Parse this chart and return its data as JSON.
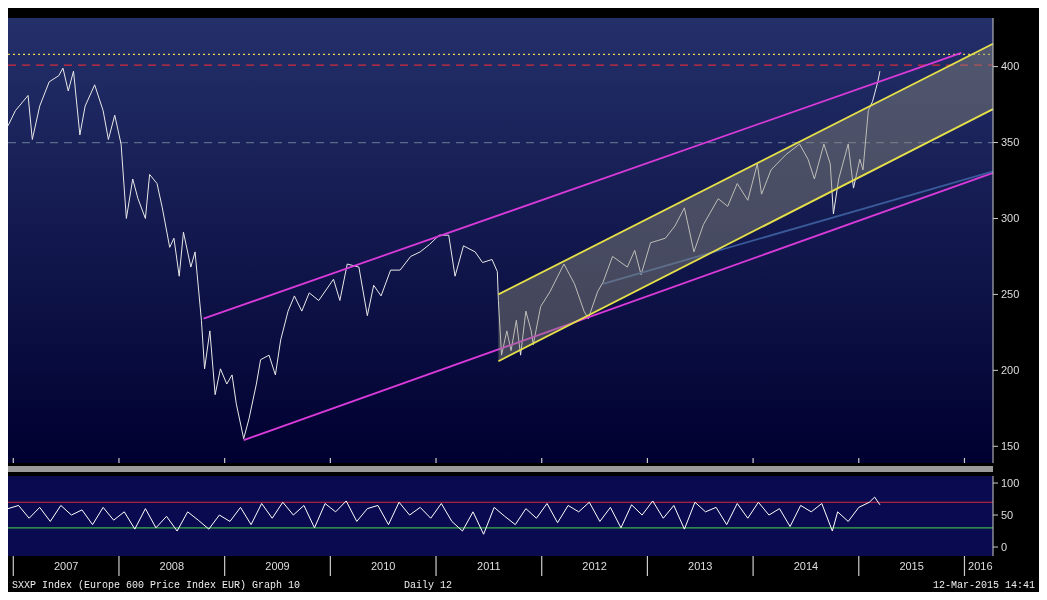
{
  "chart_data": [
    {
      "type": "line",
      "tick_labels": "y",
      "xlim": [
        2006.95,
        2016.27
      ],
      "xticks": [
        {
          "value": 2007,
          "label": null
        },
        {
          "value": 2008,
          "label": null
        },
        {
          "value": 2009,
          "label": null
        },
        {
          "value": 2010,
          "label": null
        },
        {
          "value": 2011,
          "label": null
        },
        {
          "value": 2012,
          "label": null
        },
        {
          "value": 2013,
          "label": null
        },
        {
          "value": 2014,
          "label": null
        },
        {
          "value": 2015,
          "label": null
        },
        {
          "value": 2016,
          "label": null
        }
      ],
      "ylim": [
        139,
        432
      ],
      "yticks": [
        150,
        200,
        250,
        300,
        350,
        400
      ],
      "ref_lines": [
        {
          "axis": "y",
          "value": 408,
          "color": "#e8d84a",
          "line_style": "dotted"
        },
        {
          "axis": "y",
          "value": 401,
          "color": "#d42a3a",
          "line_style": "dashed"
        },
        {
          "axis": "y",
          "value": 350,
          "color": "#5a6a8a",
          "line_style": "dashed"
        }
      ],
      "series": [
        {
          "color": "#e8e8e8",
          "x": [
            2006.95,
            2007.02,
            2007.14,
            2007.18,
            2007.25,
            2007.34,
            2007.43,
            2007.47,
            2007.52,
            2007.57,
            2007.63,
            2007.68,
            2007.77,
            2007.85,
            2007.9,
            2007.96,
            2008.02,
            2008.07,
            2008.13,
            2008.18,
            2008.25,
            2008.29,
            2008.36,
            2008.41,
            2008.48,
            2008.52,
            2008.57,
            2008.61,
            2008.68,
            2008.72,
            2008.78,
            2008.81,
            2008.86,
            2008.91,
            2008.96,
            2009.02,
            2009.07,
            2009.11,
            2009.18,
            2009.23,
            2009.3,
            2009.34,
            2009.42,
            2009.48,
            2009.53,
            2009.6,
            2009.66,
            2009.73,
            2009.8,
            2009.89,
            2010.03,
            2010.09,
            2010.16,
            2010.27,
            2010.35,
            2010.41,
            2010.48,
            2010.57,
            2010.66,
            2010.76,
            2010.85,
            2010.94,
            2011.03,
            2011.12,
            2011.18,
            2011.26,
            2011.37,
            2011.44,
            2011.53,
            2011.58,
            2011.59,
            2011.62,
            2011.67,
            2011.71,
            2011.76,
            2011.8,
            2011.85,
            2011.9,
            2011.92,
            2011.99,
            2012.08,
            2012.21,
            2012.31,
            2012.4,
            2012.44,
            2012.53,
            2012.58,
            2012.67,
            2012.81,
            2012.88,
            2012.94,
            2013.03,
            2013.17,
            2013.26,
            2013.35,
            2013.44,
            2013.53,
            2013.67,
            2013.76,
            2013.85,
            2013.95,
            2014.04,
            2014.08,
            2014.17,
            2014.31,
            2014.44,
            2014.52,
            2014.58,
            2014.67,
            2014.73,
            2014.76,
            2014.81,
            2014.9,
            2014.95,
            2015.01,
            2015.04,
            2015.09,
            2015.13,
            2015.18,
            2015.2
          ],
          "values": [
            361,
            371,
            381,
            352,
            374,
            390,
            394,
            399,
            384,
            397,
            355,
            374,
            388,
            371,
            352,
            368,
            349,
            300,
            326,
            313,
            300,
            329,
            323,
            307,
            281,
            287,
            262,
            291,
            268,
            278,
            233,
            201,
            226,
            184,
            201,
            191,
            197,
            178,
            155,
            168,
            191,
            207,
            210,
            197,
            220,
            239,
            249,
            239,
            251,
            246,
            260,
            246,
            270,
            268,
            236,
            256,
            249,
            266,
            266,
            275,
            278,
            283,
            289,
            289,
            262,
            282,
            278,
            271,
            273,
            265,
            246,
            210,
            226,
            213,
            233,
            210,
            239,
            226,
            217,
            242,
            252,
            270,
            257,
            239,
            234,
            252,
            258,
            275,
            268,
            279,
            263,
            284,
            287,
            295,
            307,
            278,
            296,
            313,
            308,
            323,
            312,
            336,
            316,
            332,
            342,
            349,
            339,
            326,
            349,
            336,
            303,
            326,
            349,
            320,
            339,
            332,
            371,
            377,
            390,
            397
          ]
        },
        {
          "color": "#d93ad9",
          "x": [
            2008.8,
            2015.97
          ],
          "values": [
            234,
            409
          ]
        },
        {
          "color": "#d93ad9",
          "x": [
            2009.18,
            2016.27
          ],
          "values": [
            154,
            330
          ]
        },
        {
          "color": "#3a5a9a",
          "x": [
            2012.58,
            2016.27
          ],
          "values": [
            257,
            331
          ]
        },
        {
          "color": "#e6e04a",
          "x": [
            2011.59,
            2016.27
          ],
          "values": [
            206,
            372
          ],
          "lower": [
            206,
            372
          ],
          "upper": [
            250,
            415
          ]
        },
        {
          "color": "#e6e04a",
          "x": [
            2011.59,
            2016.27
          ],
          "values": [
            250,
            415
          ]
        }
      ]
    },
    {
      "type": "line",
      "xlim": [
        2006.95,
        2016.27
      ],
      "xticks": [
        {
          "value": 2007,
          "label": null
        },
        {
          "value": 2007.5,
          "label": "2007"
        },
        {
          "value": 2008,
          "label": null
        },
        {
          "value": 2008.5,
          "label": "2008"
        },
        {
          "value": 2009,
          "label": null
        },
        {
          "value": 2009.5,
          "label": "2009"
        },
        {
          "value": 2010,
          "label": null
        },
        {
          "value": 2010.5,
          "label": "2010"
        },
        {
          "value": 2011,
          "label": null
        },
        {
          "value": 2011.5,
          "label": "2011"
        },
        {
          "value": 2012,
          "label": null
        },
        {
          "value": 2012.5,
          "label": "2012"
        },
        {
          "value": 2013,
          "label": null
        },
        {
          "value": 2013.5,
          "label": "2013"
        },
        {
          "value": 2014,
          "label": null
        },
        {
          "value": 2014.5,
          "label": "2014"
        },
        {
          "value": 2015,
          "label": null
        },
        {
          "value": 2015.5,
          "label": "2015"
        },
        {
          "value": 2016,
          "label": null
        },
        {
          "value": 2016.15,
          "label": "2016"
        }
      ],
      "ylim": [
        -14,
        111
      ],
      "yticks": [
        0,
        50,
        100
      ],
      "ref_lines": [
        {
          "axis": "y",
          "value": 70,
          "color": "#d42a3a"
        },
        {
          "axis": "y",
          "value": 30,
          "color": "#3ab04a"
        }
      ],
      "annotations": [
        "SXXP Index (Europe 600 Price Index EUR) Graph 10",
        "Daily 12",
        "12-Mar-2015 14:41"
      ],
      "series": [
        {
          "color": "#ffffff",
          "x": [
            2006.95,
            2007.05,
            2007.15,
            2007.25,
            2007.35,
            2007.45,
            2007.55,
            2007.65,
            2007.75,
            2007.85,
            2007.95,
            2008.05,
            2008.15,
            2008.25,
            2008.35,
            2008.45,
            2008.55,
            2008.65,
            2008.75,
            2008.85,
            2008.95,
            2009.05,
            2009.15,
            2009.25,
            2009.35,
            2009.45,
            2009.55,
            2009.65,
            2009.75,
            2009.85,
            2009.95,
            2010.05,
            2010.15,
            2010.25,
            2010.35,
            2010.45,
            2010.55,
            2010.65,
            2010.75,
            2010.85,
            2010.95,
            2011.05,
            2011.15,
            2011.25,
            2011.35,
            2011.45,
            2011.55,
            2011.65,
            2011.75,
            2011.85,
            2011.95,
            2012.05,
            2012.15,
            2012.25,
            2012.35,
            2012.45,
            2012.55,
            2012.65,
            2012.75,
            2012.85,
            2012.95,
            2013.05,
            2013.15,
            2013.25,
            2013.35,
            2013.45,
            2013.55,
            2013.65,
            2013.75,
            2013.85,
            2013.95,
            2014.05,
            2014.15,
            2014.25,
            2014.35,
            2014.45,
            2014.55,
            2014.65,
            2014.75,
            2014.8,
            2014.9,
            2015,
            2015.1,
            2015.15,
            2015.2
          ],
          "values": [
            60,
            65,
            45,
            62,
            40,
            65,
            50,
            58,
            35,
            62,
            42,
            55,
            28,
            60,
            30,
            48,
            25,
            55,
            42,
            28,
            50,
            40,
            62,
            35,
            68,
            45,
            70,
            50,
            65,
            30,
            68,
            55,
            72,
            40,
            60,
            65,
            35,
            70,
            50,
            62,
            45,
            68,
            40,
            25,
            55,
            20,
            62,
            48,
            35,
            60,
            45,
            68,
            38,
            65,
            55,
            70,
            40,
            62,
            30,
            66,
            50,
            72,
            45,
            65,
            28,
            70,
            55,
            62,
            35,
            68,
            45,
            70,
            50,
            60,
            32,
            65,
            55,
            68,
            25,
            55,
            40,
            62,
            70,
            78,
            66
          ]
        }
      ]
    }
  ]
}
